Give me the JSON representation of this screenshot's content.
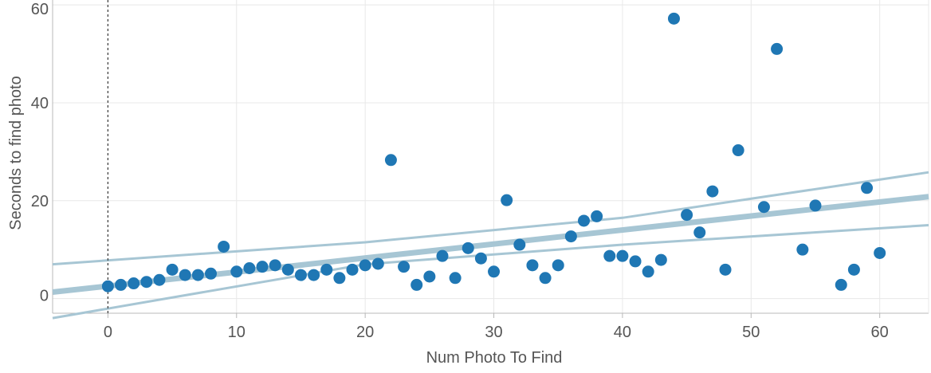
{
  "chart_data": {
    "type": "scatter",
    "title": "",
    "xlabel": "Num Photo To Find",
    "ylabel": "Seconds to find photo",
    "xlim": [
      -4.3,
      63.8
    ],
    "ylim": [
      -3,
      61
    ],
    "x_ticks": [
      0,
      10,
      20,
      30,
      40,
      50,
      60
    ],
    "y_ticks": [
      0,
      20,
      40,
      60
    ],
    "x_tick_labels": [
      "0",
      "10",
      "20",
      "30",
      "40",
      "50",
      "60"
    ],
    "y_tick_labels": [
      "0",
      "20",
      "40",
      "60"
    ],
    "grid": true,
    "reference_line_x": 0,
    "colors": {
      "points": "#1f77b4",
      "trend": "#a7c6d4",
      "grid": "#e8e8e8",
      "axis": "#b8b8b8",
      "text": "#555555",
      "reference": "#444444"
    },
    "trend": {
      "slope": 0.2864,
      "intercept": 2.55,
      "upper_band": [
        [
          -4.3,
          7.0
        ],
        [
          20,
          11.5
        ],
        [
          40,
          16.5
        ],
        [
          63.8,
          25.8
        ]
      ],
      "lower_band": [
        [
          -4.3,
          -4.0
        ],
        [
          20,
          7.0
        ],
        [
          40,
          11.0
        ],
        [
          63.8,
          15.0
        ]
      ]
    },
    "points": [
      [
        0,
        2.5
      ],
      [
        1,
        2.8
      ],
      [
        2,
        3.1
      ],
      [
        3,
        3.4
      ],
      [
        4,
        3.8
      ],
      [
        5,
        5.9
      ],
      [
        6,
        4.8
      ],
      [
        7,
        4.8
      ],
      [
        8,
        5.1
      ],
      [
        9,
        10.6
      ],
      [
        10,
        5.5
      ],
      [
        11,
        6.2
      ],
      [
        12,
        6.5
      ],
      [
        13,
        6.8
      ],
      [
        14,
        5.9
      ],
      [
        15,
        4.8
      ],
      [
        16,
        4.8
      ],
      [
        17,
        5.9
      ],
      [
        18,
        4.2
      ],
      [
        19,
        5.9
      ],
      [
        20,
        6.8
      ],
      [
        21,
        7.1
      ],
      [
        22,
        28.3
      ],
      [
        23,
        6.5
      ],
      [
        24,
        2.8
      ],
      [
        25,
        4.5
      ],
      [
        26,
        8.7
      ],
      [
        27,
        4.2
      ],
      [
        28,
        10.3
      ],
      [
        29,
        8.2
      ],
      [
        30,
        5.5
      ],
      [
        31,
        20.1
      ],
      [
        32,
        11.0
      ],
      [
        33,
        6.8
      ],
      [
        34,
        4.2
      ],
      [
        35,
        6.8
      ],
      [
        36,
        12.7
      ],
      [
        37,
        15.9
      ],
      [
        38,
        16.8
      ],
      [
        39,
        8.7
      ],
      [
        40,
        8.7
      ],
      [
        41,
        7.6
      ],
      [
        42,
        5.5
      ],
      [
        43,
        7.9
      ],
      [
        44,
        57.2
      ],
      [
        45,
        17.1
      ],
      [
        46,
        13.5
      ],
      [
        47,
        21.9
      ],
      [
        48,
        5.9
      ],
      [
        49,
        30.3
      ],
      [
        51,
        18.7
      ],
      [
        52,
        51.0
      ],
      [
        54,
        10.0
      ],
      [
        55,
        19.0
      ],
      [
        57,
        2.8
      ],
      [
        58,
        5.9
      ],
      [
        59,
        22.6
      ],
      [
        60,
        9.3
      ]
    ]
  }
}
